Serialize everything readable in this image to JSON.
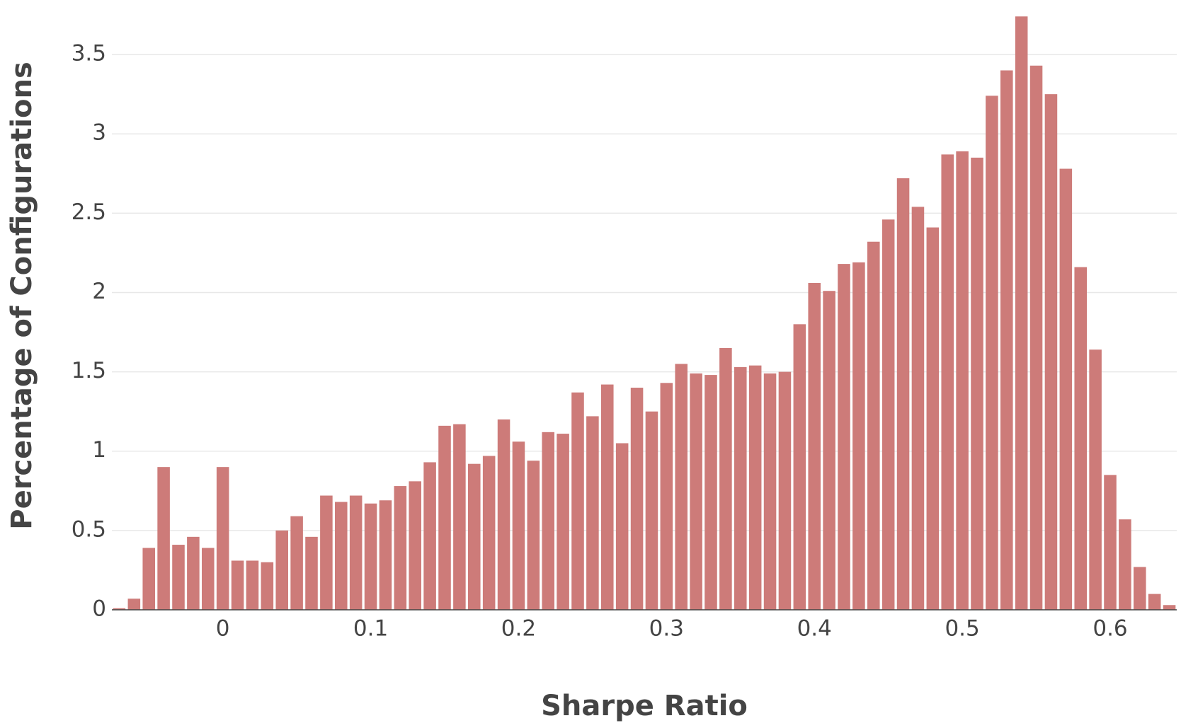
{
  "chart_data": {
    "type": "histogram",
    "xlabel": "Sharpe Ratio",
    "ylabel": "Percentage of Configurations",
    "bins": [
      -0.075,
      -0.065,
      -0.055,
      -0.045,
      -0.035,
      -0.025,
      -0.015,
      -0.005,
      0.005,
      0.015,
      0.025,
      0.035,
      0.045,
      0.055,
      0.065,
      0.075,
      0.085,
      0.095,
      0.105,
      0.115,
      0.125,
      0.135,
      0.145,
      0.155,
      0.165,
      0.175,
      0.185,
      0.195,
      0.205,
      0.215,
      0.225,
      0.235,
      0.245,
      0.255,
      0.265,
      0.275,
      0.285,
      0.295,
      0.305,
      0.315,
      0.325,
      0.335,
      0.345,
      0.355,
      0.365,
      0.375,
      0.385,
      0.395,
      0.405,
      0.415,
      0.425,
      0.435,
      0.445,
      0.455,
      0.465,
      0.475,
      0.485,
      0.495,
      0.505,
      0.515,
      0.525,
      0.535,
      0.545,
      0.555,
      0.565,
      0.575,
      0.585,
      0.595,
      0.605,
      0.615,
      0.625,
      0.635,
      0.645
    ],
    "values": [
      0.01,
      0.07,
      0.39,
      0.9,
      0.41,
      0.46,
      0.39,
      0.9,
      0.31,
      0.31,
      0.3,
      0.5,
      0.59,
      0.46,
      0.72,
      0.68,
      0.72,
      0.67,
      0.69,
      0.78,
      0.81,
      0.93,
      1.16,
      1.17,
      0.92,
      0.97,
      1.2,
      1.06,
      0.94,
      1.12,
      1.11,
      1.37,
      1.22,
      1.42,
      1.05,
      1.4,
      1.25,
      1.43,
      1.55,
      1.49,
      1.48,
      1.65,
      1.53,
      1.54,
      1.49,
      1.5,
      1.8,
      2.06,
      2.01,
      2.18,
      2.19,
      2.32,
      2.46,
      2.72,
      2.54,
      2.41,
      2.87,
      2.89,
      2.85,
      3.24,
      3.4,
      3.74,
      3.43,
      3.25,
      2.78,
      2.16,
      1.64,
      0.85,
      0.57,
      0.27,
      0.1,
      0.03
    ],
    "color": "#cd7b79",
    "xlim": [
      -0.075,
      0.645
    ],
    "ylim": [
      0,
      3.75
    ],
    "xticks": [
      0,
      0.1,
      0.2,
      0.3,
      0.4,
      0.5,
      0.6
    ],
    "yticks": [
      0,
      0.5,
      1,
      1.5,
      2,
      2.5,
      3,
      3.5
    ],
    "grid": true
  }
}
